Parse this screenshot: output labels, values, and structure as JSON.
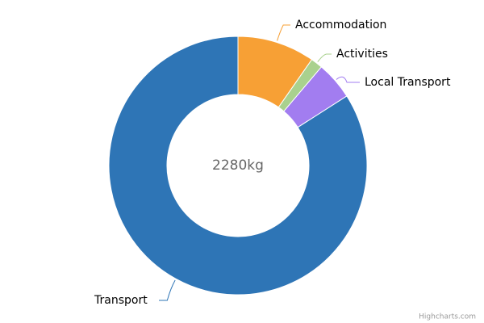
{
  "chart_data": {
    "type": "donut",
    "center_label": "2280kg",
    "categories": [
      "Accommodation",
      "Activities",
      "Local Transport",
      "Transport"
    ],
    "values": [
      221,
      34,
      109,
      1916
    ],
    "colors": [
      "#f7a035",
      "#a9d18e",
      "#a27df0",
      "#2e75b6"
    ],
    "credits": "Highcharts.com"
  }
}
